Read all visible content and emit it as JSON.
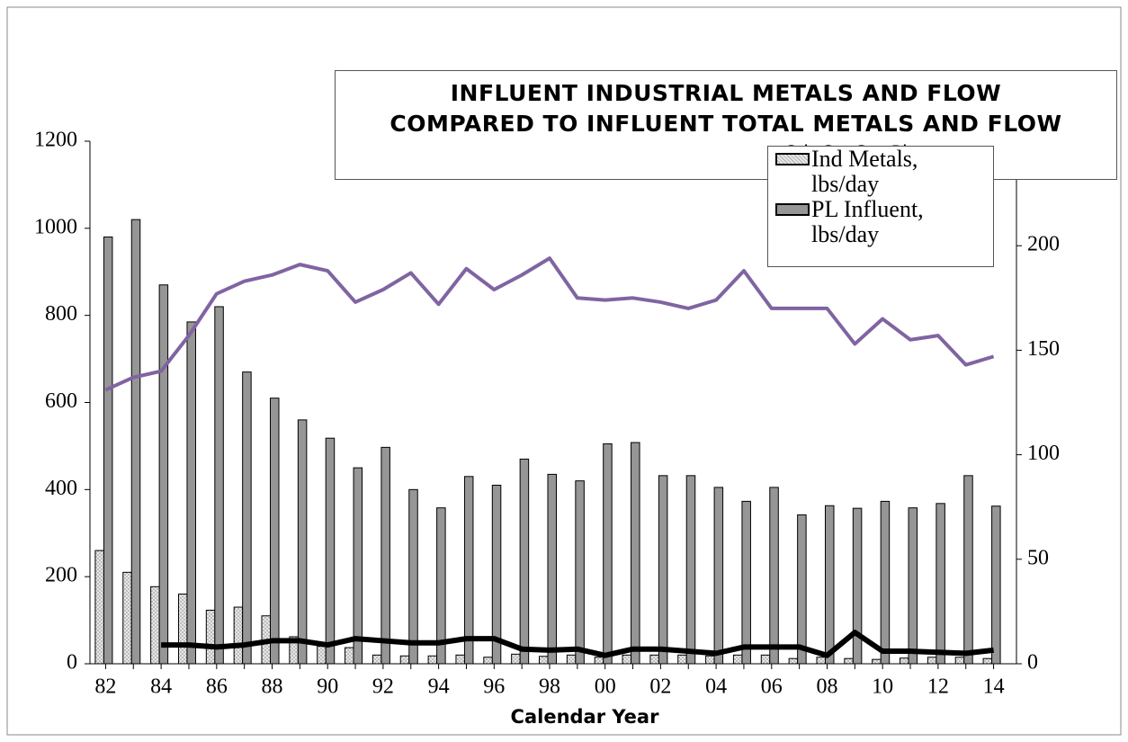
{
  "chart_data": {
    "type": "bar",
    "title_lines": [
      "INFLUENT INDUSTRIAL METALS AND FLOW",
      "COMPARED TO INFLUENT TOTAL METALS AND FLOW"
    ],
    "subtitle": "Cd, Cr, Cu, Pb",
    "x_label": "Calendar Year",
    "categories": [
      "82",
      null,
      "84",
      null,
      "86",
      null,
      "88",
      null,
      "90",
      null,
      "92",
      null,
      "94",
      null,
      "96",
      null,
      "98",
      null,
      "00",
      null,
      "02",
      null,
      "04",
      null,
      "06",
      null,
      "08",
      null,
      "10",
      null,
      "12",
      null,
      "14"
    ],
    "ylim": [
      0,
      1200
    ],
    "yticks": [
      0,
      200,
      400,
      600,
      800,
      1000,
      1200
    ],
    "y2lim": [
      0,
      250
    ],
    "y2ticks": [
      0,
      50,
      100,
      150,
      200
    ],
    "series": [
      {
        "name": "Ind Metals, lbs/day",
        "type": "bar",
        "color": "#d9d9d9",
        "values": [
          260,
          210,
          177,
          160,
          123,
          130,
          110,
          62,
          40,
          37,
          20,
          18,
          18,
          20,
          15,
          22,
          17,
          20,
          15,
          20,
          20,
          20,
          18,
          20,
          20,
          12,
          15,
          12,
          10,
          13,
          15,
          15,
          12
        ]
      },
      {
        "name": "PL Influent, lbs/day",
        "type": "bar",
        "color": "#969696",
        "values": [
          980,
          1020,
          870,
          785,
          820,
          670,
          610,
          560,
          518,
          450,
          497,
          400,
          358,
          430,
          410,
          470,
          435,
          420,
          505,
          508,
          432,
          432,
          405,
          373,
          405,
          342,
          363,
          357,
          373,
          358,
          368,
          432,
          362
        ]
      },
      {
        "type": "line",
        "axis": "y2",
        "color": "#8064a2",
        "values": [
          131,
          137,
          140,
          157,
          177,
          183,
          186,
          191,
          188,
          173,
          179,
          187,
          172,
          189,
          179,
          186,
          194,
          175,
          174,
          175,
          173,
          170,
          174,
          188,
          170,
          170,
          170,
          153,
          165,
          155,
          157,
          143,
          147
        ]
      },
      {
        "type": "line",
        "axis": "y2",
        "color": "#000000",
        "values": [
          null,
          null,
          9,
          9,
          8,
          9,
          11,
          11,
          9,
          12,
          11,
          10,
          10,
          12,
          12,
          7,
          6.5,
          7,
          4,
          7,
          7,
          6,
          5,
          8,
          8,
          8,
          4,
          15,
          6,
          6,
          5.5,
          5,
          6.5
        ]
      }
    ]
  }
}
